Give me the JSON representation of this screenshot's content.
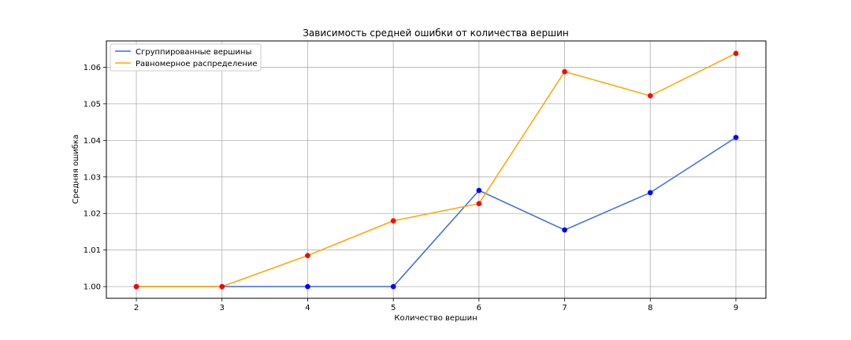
{
  "chart_data": {
    "type": "line",
    "title": "Зависимость средней ошибки от количества вершин",
    "xlabel": "Количество вершин",
    "ylabel": "Средняя ошибка",
    "x": [
      2,
      3,
      4,
      5,
      6,
      7,
      8,
      9
    ],
    "xlim": [
      1.65,
      9.35
    ],
    "ylim": [
      0.9968,
      1.0672
    ],
    "yticks": [
      "1.00",
      "1.01",
      "1.02",
      "1.03",
      "1.04",
      "1.05",
      "1.06"
    ],
    "grid": true,
    "legend_position": "upper-left",
    "series": [
      {
        "name": "Сгруппированные вершины",
        "color": "#4169e1",
        "marker_color": "#0000ff",
        "values": [
          1.0,
          1.0,
          1.0,
          1.0,
          1.0263,
          1.0155,
          1.0257,
          1.0408
        ]
      },
      {
        "name": "Равномерное распределение",
        "color": "#ffa500",
        "marker_color": "#ff0000",
        "values": [
          1.0,
          1.0,
          1.0085,
          1.018,
          1.0227,
          1.0588,
          1.0522,
          1.0638
        ]
      }
    ]
  }
}
